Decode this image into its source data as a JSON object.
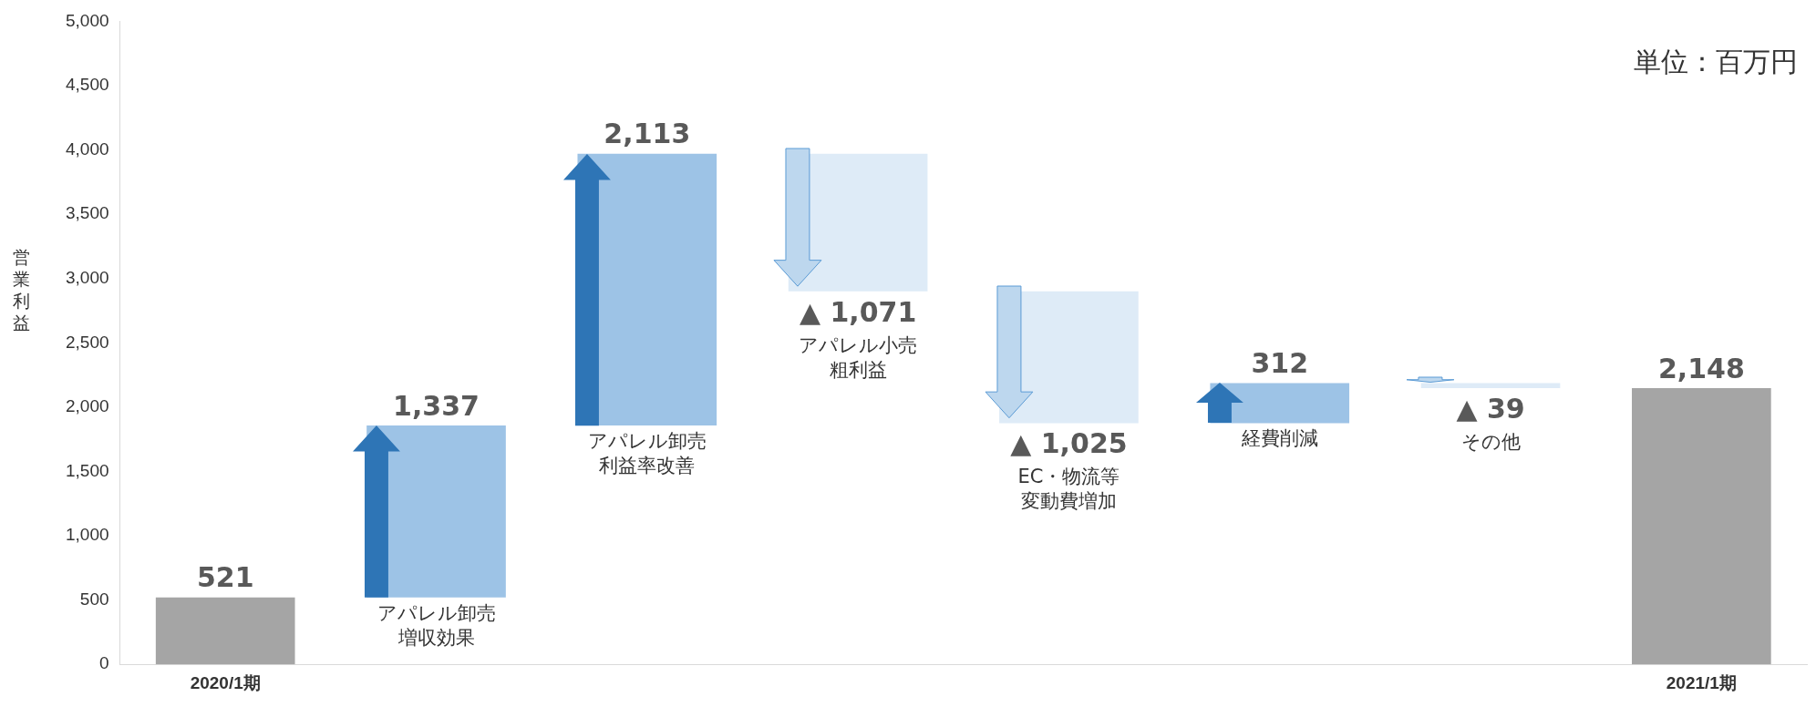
{
  "chart_data": {
    "type": "bar",
    "categories": [
      "2020/1期",
      "アパレル卸売増収効果",
      "アパレル卸売利益率改善",
      "アパレル小売粗利益",
      "EC・物流等変動費増加",
      "経費削減",
      "その他",
      "2021/1期"
    ],
    "base": [
      0,
      521,
      1858,
      3971,
      2900,
      1875,
      2187,
      0
    ],
    "values": [
      521,
      1337,
      2113,
      -1071,
      -1025,
      312,
      -39,
      2148
    ],
    "colors": [
      "#a5a5a5",
      "#9dc3e6",
      "#9dc3e6",
      "#deebf7",
      "#deebf7",
      "#9dc3e6",
      "#deebf7",
      "#a5a5a5"
    ],
    "value_labels": [
      "521",
      "1,337",
      "2,113",
      "▲ 1,071",
      "▲ 1,025",
      "312",
      "▲ 39",
      "2,148"
    ],
    "ylabel": "営業利益",
    "ylim": [
      0,
      5000
    ],
    "yticks": [
      0,
      {
        "value": 500,
        "label": "500"
      },
      {
        "value": 1000,
        "label": "1,000"
      },
      {
        "value": 1500,
        "label": "1,500"
      },
      {
        "value": 2000,
        "label": "2,000"
      },
      {
        "value": 2500,
        "label": "2,500"
      },
      {
        "value": 3000,
        "label": "3,000"
      },
      {
        "value": 3500,
        "label": "3,500"
      },
      {
        "value": 4000,
        "label": "4,000"
      },
      {
        "value": 4500,
        "label": "4,500"
      },
      {
        "value": 5000,
        "label": "5,000"
      }
    ],
    "annotations": [
      "単位：百万円"
    ],
    "grid": false,
    "legend": false
  }
}
